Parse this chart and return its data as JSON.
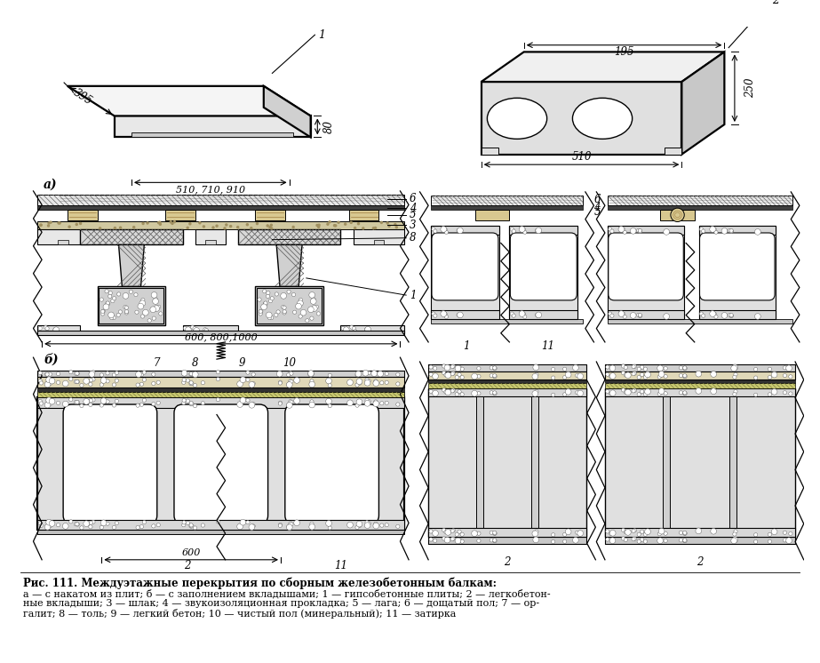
{
  "title": "Рис. 111. Междуэтажные перекрытия по сборным железобетонным балкам:",
  "caption_line1": "а — с накатом из плит; б — с заполнением вкладышами; 1 — гипсобетонные плиты; 2 — легкобетон-",
  "caption_line2": "ные вкладыши; 3 — шлак; 4 — звукоизоляционная прокладка; 5 — лага; 6 — дощатый пол; 7 — ор-",
  "caption_line3": "галит; 8 — толь; 9 — легкий бетон; 10 — чистый пол (минеральный); 11 — затирка",
  "label_a": "а)",
  "label_b": "б)",
  "dim_395": "395",
  "dim_80": "80",
  "dim_510_710_910": "510, 710, 910",
  "dim_600_800_1000": "600, 800,1000",
  "dim_600": "600",
  "dim_195": "195",
  "dim_250": "250",
  "dim_510_right": "510",
  "bg_color": "#ffffff"
}
